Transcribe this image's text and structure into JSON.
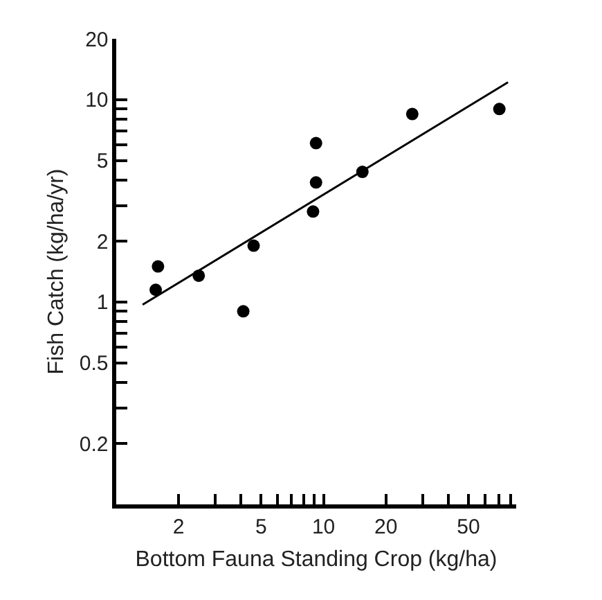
{
  "chart_data": {
    "type": "scatter",
    "xlabel": "Bottom Fauna Standing Crop (kg/ha)",
    "ylabel": "Fish Catch (kg/ha/yr)",
    "log": "xy",
    "grid": false,
    "marker": "circle",
    "xlim": [
      1,
      85
    ],
    "ylim": [
      0.1,
      20
    ],
    "xticks": [
      2,
      {
        "value": 3,
        "label": null
      },
      {
        "value": 4,
        "label": null
      },
      5,
      {
        "value": 6,
        "label": null
      },
      {
        "value": 7,
        "label": null
      },
      {
        "value": 8,
        "label": null
      },
      {
        "value": 9,
        "label": null
      },
      10,
      20,
      {
        "value": 30,
        "label": null
      },
      {
        "value": 40,
        "label": null
      },
      50,
      {
        "value": 60,
        "label": null
      },
      {
        "value": 70,
        "label": null
      },
      {
        "value": 80,
        "label": null
      }
    ],
    "yticks": [
      0.2,
      {
        "value": 0.3,
        "label": null
      },
      {
        "value": 0.4,
        "label": null
      },
      0.5,
      {
        "value": 0.6,
        "label": null
      },
      {
        "value": 0.7,
        "label": null
      },
      {
        "value": 0.8,
        "label": null
      },
      {
        "value": 0.9,
        "label": null
      },
      1,
      2,
      {
        "value": 3,
        "label": null
      },
      {
        "value": 4,
        "label": null
      },
      5,
      {
        "value": 6,
        "label": null
      },
      {
        "value": 7,
        "label": null
      },
      {
        "value": 8,
        "label": null
      },
      {
        "value": 9,
        "label": null
      },
      10,
      20
    ],
    "series": [
      {
        "color": "#000000",
        "x": [
          1.55,
          1.59,
          2.5,
          4.1,
          4.6,
          8.9,
          9.2,
          9.2,
          15.4,
          26.8,
          70.5
        ],
        "values": [
          1.15,
          1.5,
          1.35,
          0.9,
          1.9,
          2.8,
          3.9,
          6.1,
          4.4,
          8.5,
          9.0
        ]
      },
      {
        "type": "line",
        "color": "#000000",
        "marker": "none",
        "line_style": "solid",
        "x": [
          1.34,
          77.6
        ],
        "values": [
          0.97,
          12.2
        ]
      }
    ]
  }
}
